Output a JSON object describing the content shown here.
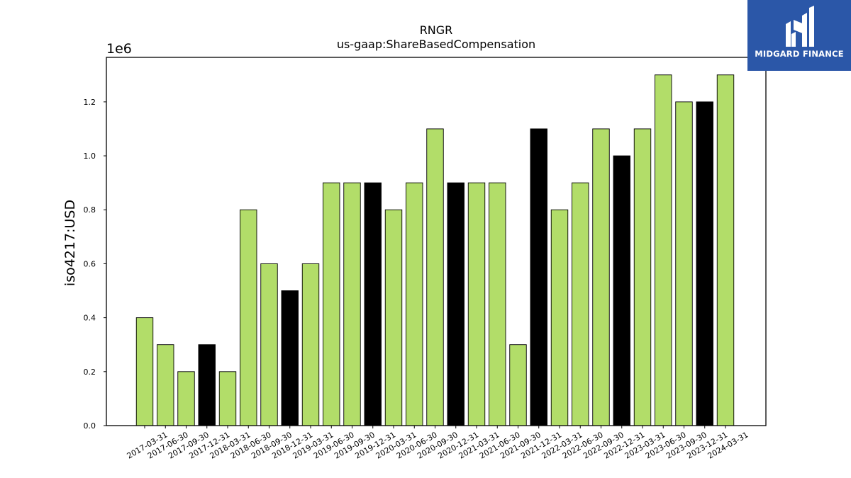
{
  "brand": {
    "name": "MIDGARD FINANCE",
    "bg_color": "#2b57a8"
  },
  "chart_data": {
    "type": "bar",
    "title": "RNGR",
    "subtitle": "us-gaap:ShareBasedCompensation",
    "ylabel": "iso4217:USD",
    "xlabel": "",
    "y_scale_label": "1e6",
    "ylim": [
      0,
      1.365
    ],
    "y_ticks": [
      0.0,
      0.2,
      0.4,
      0.6,
      0.8,
      1.0,
      1.2
    ],
    "y_tick_labels": [
      "0.0",
      "0.2",
      "0.4",
      "0.6",
      "0.8",
      "1.0",
      "1.2"
    ],
    "grid": false,
    "colors": {
      "default": "#b2dd69",
      "highlight": "#000000"
    },
    "categories": [
      "2017-03-31",
      "2017-06-30",
      "2017-09-30",
      "2017-12-31",
      "2018-03-31",
      "2018-06-30",
      "2018-09-30",
      "2018-12-31",
      "2019-03-31",
      "2019-06-30",
      "2019-09-30",
      "2019-12-31",
      "2020-03-31",
      "2020-06-30",
      "2020-09-30",
      "2020-12-31",
      "2021-03-31",
      "2021-06-30",
      "2021-09-30",
      "2021-12-31",
      "2022-03-31",
      "2022-06-30",
      "2022-09-30",
      "2022-12-31",
      "2023-03-31",
      "2023-06-30",
      "2023-09-30",
      "2023-12-31",
      "2024-03-31"
    ],
    "values": [
      400000,
      300000,
      200000,
      300000,
      200000,
      800000,
      600000,
      500000,
      600000,
      900000,
      900000,
      900000,
      800000,
      900000,
      1100000,
      900000,
      900000,
      900000,
      300000,
      1100000,
      800000,
      900000,
      1100000,
      1000000,
      1100000,
      1300000,
      1200000,
      1200000,
      1300000
    ],
    "highlight": [
      false,
      false,
      false,
      true,
      false,
      false,
      false,
      true,
      false,
      false,
      false,
      true,
      false,
      false,
      false,
      true,
      false,
      false,
      false,
      true,
      false,
      false,
      false,
      true,
      false,
      false,
      false,
      true,
      false
    ]
  }
}
